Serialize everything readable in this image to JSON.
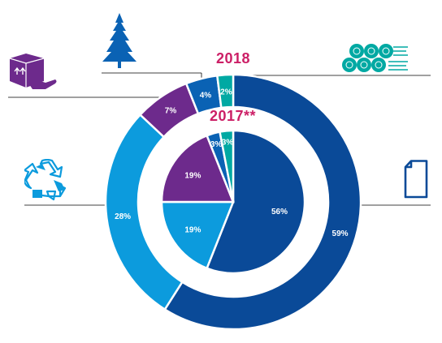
{
  "chart_data": [
    {
      "type": "pie",
      "title": "2018",
      "ring": "outer",
      "slices": [
        {
          "label": "59%",
          "value": 59,
          "color": "#0a4a98",
          "category": "paper"
        },
        {
          "label": "28%",
          "value": 28,
          "color": "#0c9bdd",
          "category": "recycled"
        },
        {
          "label": "7%",
          "value": 7,
          "color": "#6d2a8c",
          "category": "packaging"
        },
        {
          "label": "4%",
          "value": 4,
          "color": "#0a62b4",
          "category": "forest"
        },
        {
          "label": "2%",
          "value": 2,
          "color": "#00a9a3",
          "category": "pulp-logs"
        }
      ]
    },
    {
      "type": "pie",
      "title": "2017**",
      "ring": "inner",
      "slices": [
        {
          "label": "56%",
          "value": 56,
          "color": "#0a4a98",
          "category": "paper"
        },
        {
          "label": "19%",
          "value": 19,
          "color": "#0c9bdd",
          "category": "recycled"
        },
        {
          "label": "19%",
          "value": 19,
          "color": "#6d2a8c",
          "category": "packaging"
        },
        {
          "label": "3%",
          "value": 3,
          "color": "#0a62b4",
          "category": "forest"
        },
        {
          "label": "3%",
          "value": 3,
          "color": "#00a9a3",
          "category": "pulp-logs"
        }
      ]
    }
  ],
  "icons": {
    "forest": "pine-tree-icon",
    "pulp-logs": "log-pile-icon",
    "packaging": "box-hand-icon",
    "recycled": "recycle-icon",
    "paper": "document-icon"
  },
  "colors": {
    "year_label": "#cc1f66",
    "icon_blue": "#0a4a98",
    "icon_teal": "#00a9a3",
    "icon_purple": "#6d2a8c",
    "icon_cyan": "#0c9bdd"
  }
}
